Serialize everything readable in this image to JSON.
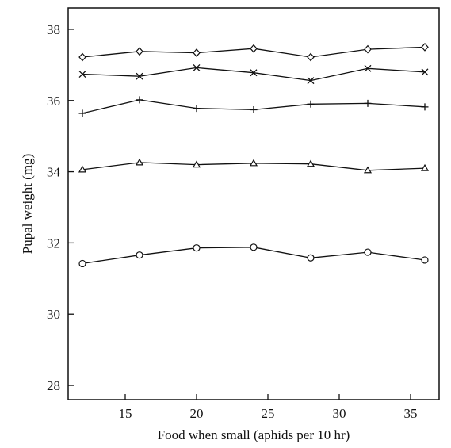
{
  "chart_data": {
    "type": "line",
    "xlabel": "Food when small (aphids per 10 hr)",
    "ylabel": "Pupal weight (mg)",
    "xlim": [
      11,
      37
    ],
    "ylim": [
      27.6,
      38.6
    ],
    "x_ticks": [
      15,
      20,
      25,
      30,
      35
    ],
    "y_ticks": [
      28,
      30,
      32,
      34,
      36,
      38
    ],
    "x": [
      12,
      16,
      20,
      24,
      28,
      32,
      36
    ],
    "series": [
      {
        "marker": "diamond",
        "values": [
          37.22,
          37.38,
          37.34,
          37.46,
          37.22,
          37.44,
          37.5
        ]
      },
      {
        "marker": "cross",
        "values": [
          36.74,
          36.68,
          36.92,
          36.78,
          36.56,
          36.9,
          36.8
        ]
      },
      {
        "marker": "plus",
        "values": [
          35.64,
          36.02,
          35.78,
          35.74,
          35.9,
          35.92,
          35.82
        ]
      },
      {
        "marker": "triangle",
        "values": [
          34.06,
          34.26,
          34.2,
          34.24,
          34.22,
          34.04,
          34.1
        ]
      },
      {
        "marker": "circle",
        "values": [
          31.42,
          31.66,
          31.86,
          31.88,
          31.58,
          31.74,
          31.52
        ]
      }
    ],
    "grid": false,
    "legend": "none"
  }
}
